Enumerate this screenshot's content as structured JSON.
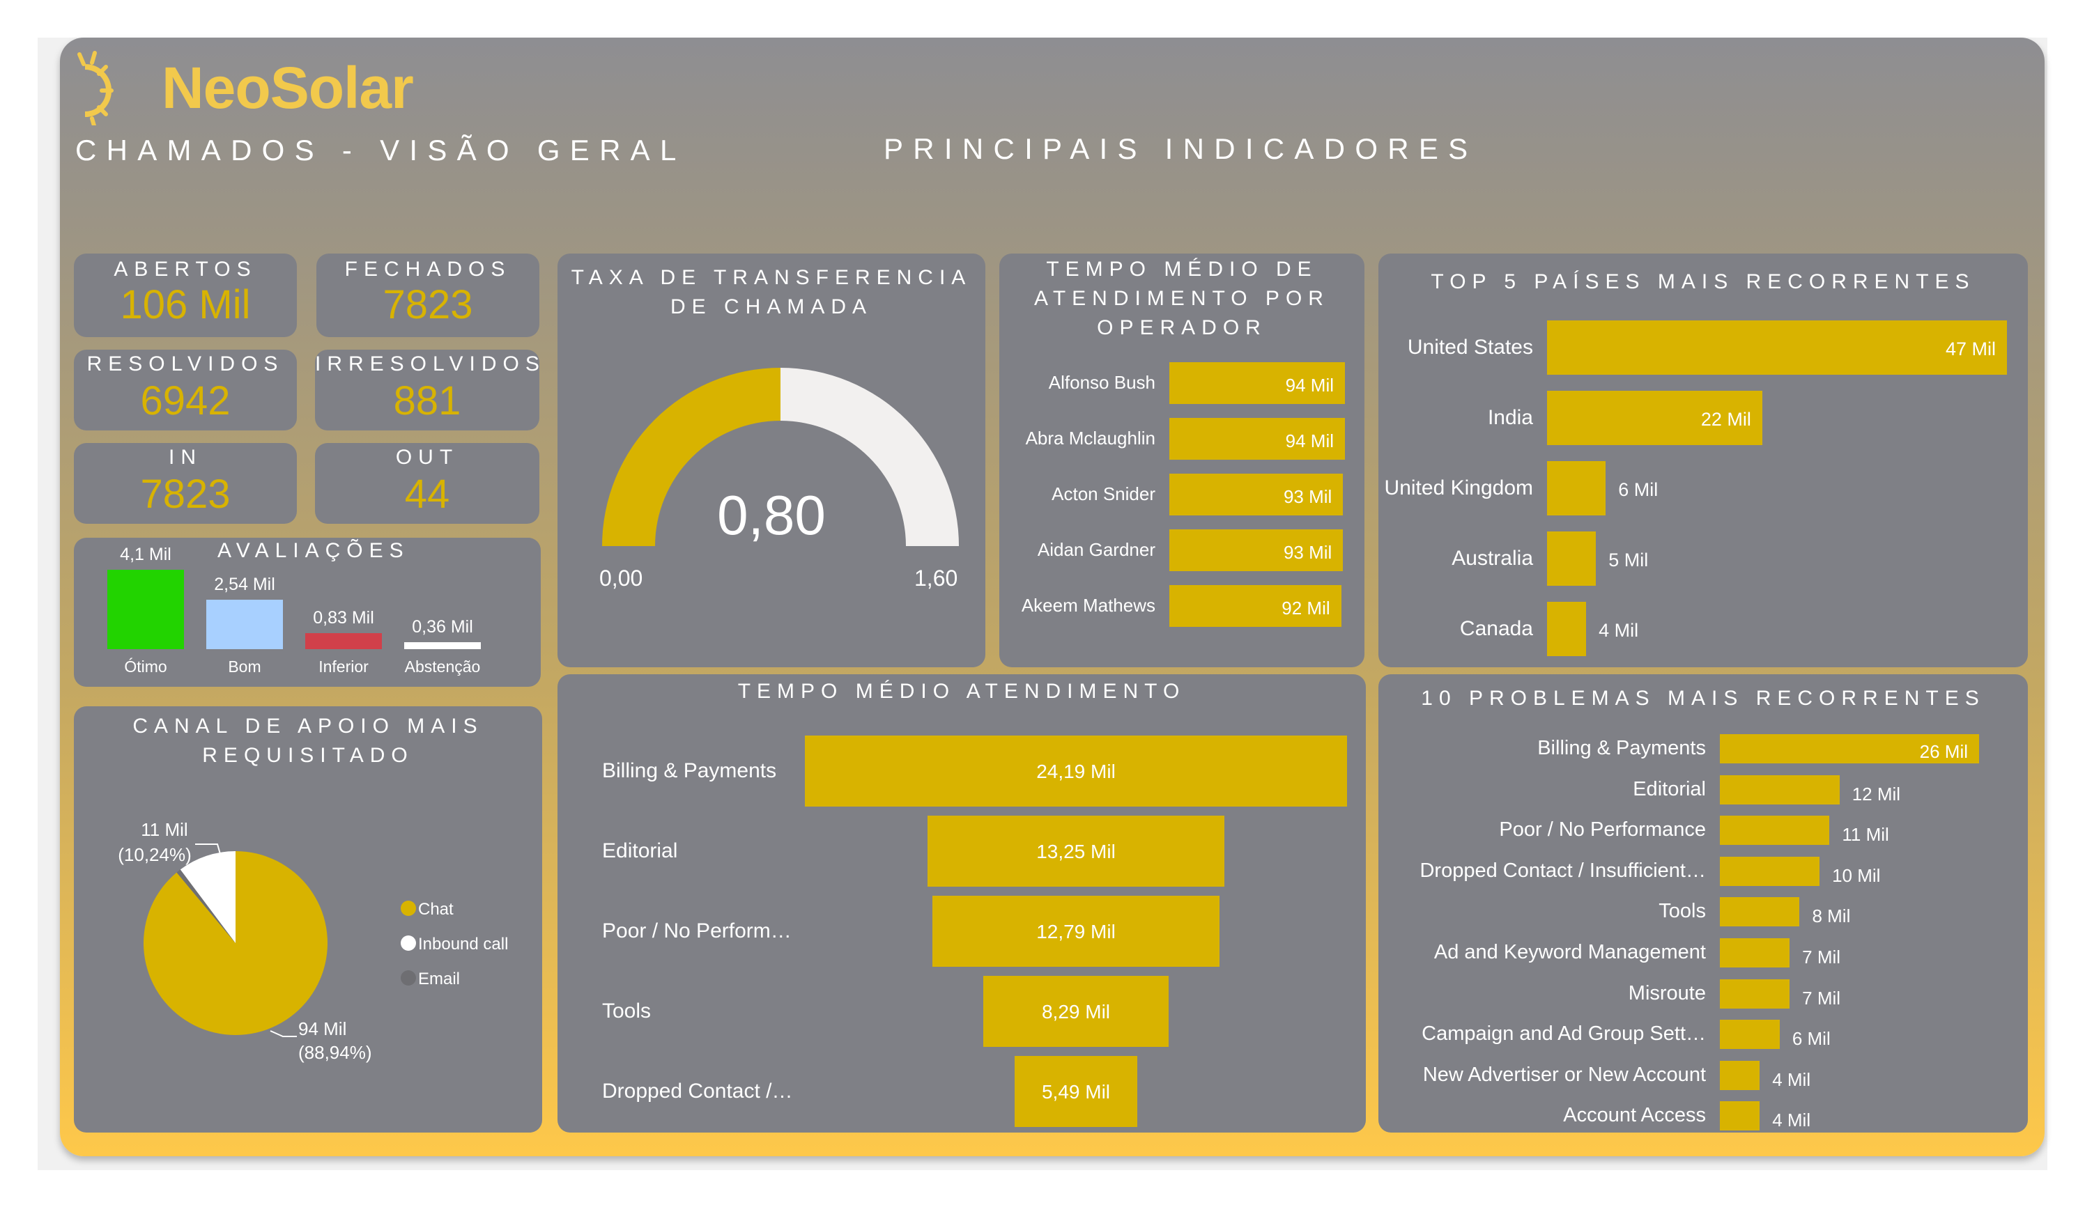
{
  "brand": {
    "name": "NeoSolar",
    "color": "#f2c94c",
    "logo_icon": "sun-icon"
  },
  "header": {
    "title": "CHAMADOS - VISÃO GERAL",
    "subtitle": "PRINCIPAIS INDICADORES"
  },
  "colors": {
    "accent": "#d8b300",
    "panel": "#7f8086",
    "otimo": "#22d300",
    "bom": "#a8d0ff",
    "inferior": "#d1404a",
    "abstencao": "#ffffff"
  },
  "kpis": {
    "abertos": {
      "label": "ABERTOS",
      "value": "106 Mil"
    },
    "fechados": {
      "label": "FECHADOS",
      "value": "7823"
    },
    "resolvidos": {
      "label": "RESOLVIDOS",
      "value": "6942"
    },
    "irresolvidos": {
      "label": "IRRESOLVIDOS",
      "value": "881"
    },
    "in": {
      "label": "IN",
      "value": "7823"
    },
    "out": {
      "label": "OUT",
      "value": "44"
    }
  },
  "avaliacoes": {
    "title": "AVALIAÇÕES",
    "items": [
      {
        "label": "Ótimo",
        "value": 4.1,
        "display": "4,1 Mil"
      },
      {
        "label": "Bom",
        "value": 2.54,
        "display": "2,54 Mil"
      },
      {
        "label": "Inferior",
        "value": 0.83,
        "display": "0,83 Mil"
      },
      {
        "label": "Abstenção",
        "value": 0.36,
        "display": "0,36 Mil"
      }
    ]
  },
  "transfer": {
    "title": "TAXA DE TRANSFERENCIA DE CHAMADA",
    "value": 0.8,
    "display": "0,80",
    "min": 0,
    "max": 1.6,
    "min_label": "0,00",
    "max_label": "1,60"
  },
  "operador": {
    "title": "TEMPO MÉDIO DE ATENDIMENTO POR OPERADOR",
    "rows": [
      {
        "name": "Alfonso Bush",
        "value": 94,
        "display": "94 Mil"
      },
      {
        "name": "Abra Mclaughlin",
        "value": 94,
        "display": "94 Mil"
      },
      {
        "name": "Acton Snider",
        "value": 93,
        "display": "93 Mil"
      },
      {
        "name": "Aidan Gardner",
        "value": 93,
        "display": "93 Mil"
      },
      {
        "name": "Akeem Mathews",
        "value": 92,
        "display": "92 Mil"
      }
    ]
  },
  "paises": {
    "title": "TOP 5 PAÍSES MAIS RECORRENTES",
    "rows": [
      {
        "name": "United States",
        "value": 47,
        "display": "47 Mil"
      },
      {
        "name": "India",
        "value": 22,
        "display": "22 Mil"
      },
      {
        "name": "United Kingdom",
        "value": 6,
        "display": "6 Mil"
      },
      {
        "name": "Australia",
        "value": 5,
        "display": "5 Mil"
      },
      {
        "name": "Canada",
        "value": 4,
        "display": "4 Mil"
      }
    ]
  },
  "canal": {
    "title": "CANAL DE APOIO MAIS REQUISITADO",
    "slices": [
      {
        "name": "Chat",
        "value": 88.94,
        "color": "#d8b300",
        "display": "94 Mil",
        "pct": "(88,94%)"
      },
      {
        "name": "Inbound call",
        "value": 10.24,
        "color": "#ffffff",
        "display": "11 Mil",
        "pct": "(10,24%)"
      },
      {
        "name": "Email",
        "value": 0.82,
        "color": "#6e6e72"
      }
    ]
  },
  "tempo": {
    "title": "TEMPO MÉDIO ATENDIMENTO",
    "rows": [
      {
        "name": "Billing & Payments",
        "value": 24.19,
        "display": "24,19 Mil"
      },
      {
        "name": "Editorial",
        "value": 13.25,
        "display": "13,25 Mil"
      },
      {
        "name": "Poor / No Perform…",
        "value": 12.79,
        "display": "12,79 Mil"
      },
      {
        "name": "Tools",
        "value": 8.29,
        "display": "8,29 Mil"
      },
      {
        "name": "Dropped Contact /…",
        "value": 5.49,
        "display": "5,49 Mil"
      }
    ]
  },
  "problemas": {
    "title": "10 PROBLEMAS MAIS RECORRENTES",
    "rows": [
      {
        "name": "Billing & Payments",
        "value": 26,
        "display": "26 Mil"
      },
      {
        "name": "Editorial",
        "value": 12,
        "display": "12 Mil"
      },
      {
        "name": "Poor / No Performance",
        "value": 11,
        "display": "11 Mil"
      },
      {
        "name": "Dropped Contact / Insufficient…",
        "value": 10,
        "display": "10 Mil"
      },
      {
        "name": "Tools",
        "value": 8,
        "display": "8 Mil"
      },
      {
        "name": "Ad and Keyword Management",
        "value": 7,
        "display": "7 Mil"
      },
      {
        "name": "Misroute",
        "value": 7,
        "display": "7 Mil"
      },
      {
        "name": "Campaign and Ad Group Sett…",
        "value": 6,
        "display": "6 Mil"
      },
      {
        "name": "New Advertiser or New Account",
        "value": 4,
        "display": "4 Mil"
      },
      {
        "name": "Account Access",
        "value": 4,
        "display": "4 Mil"
      }
    ]
  }
}
